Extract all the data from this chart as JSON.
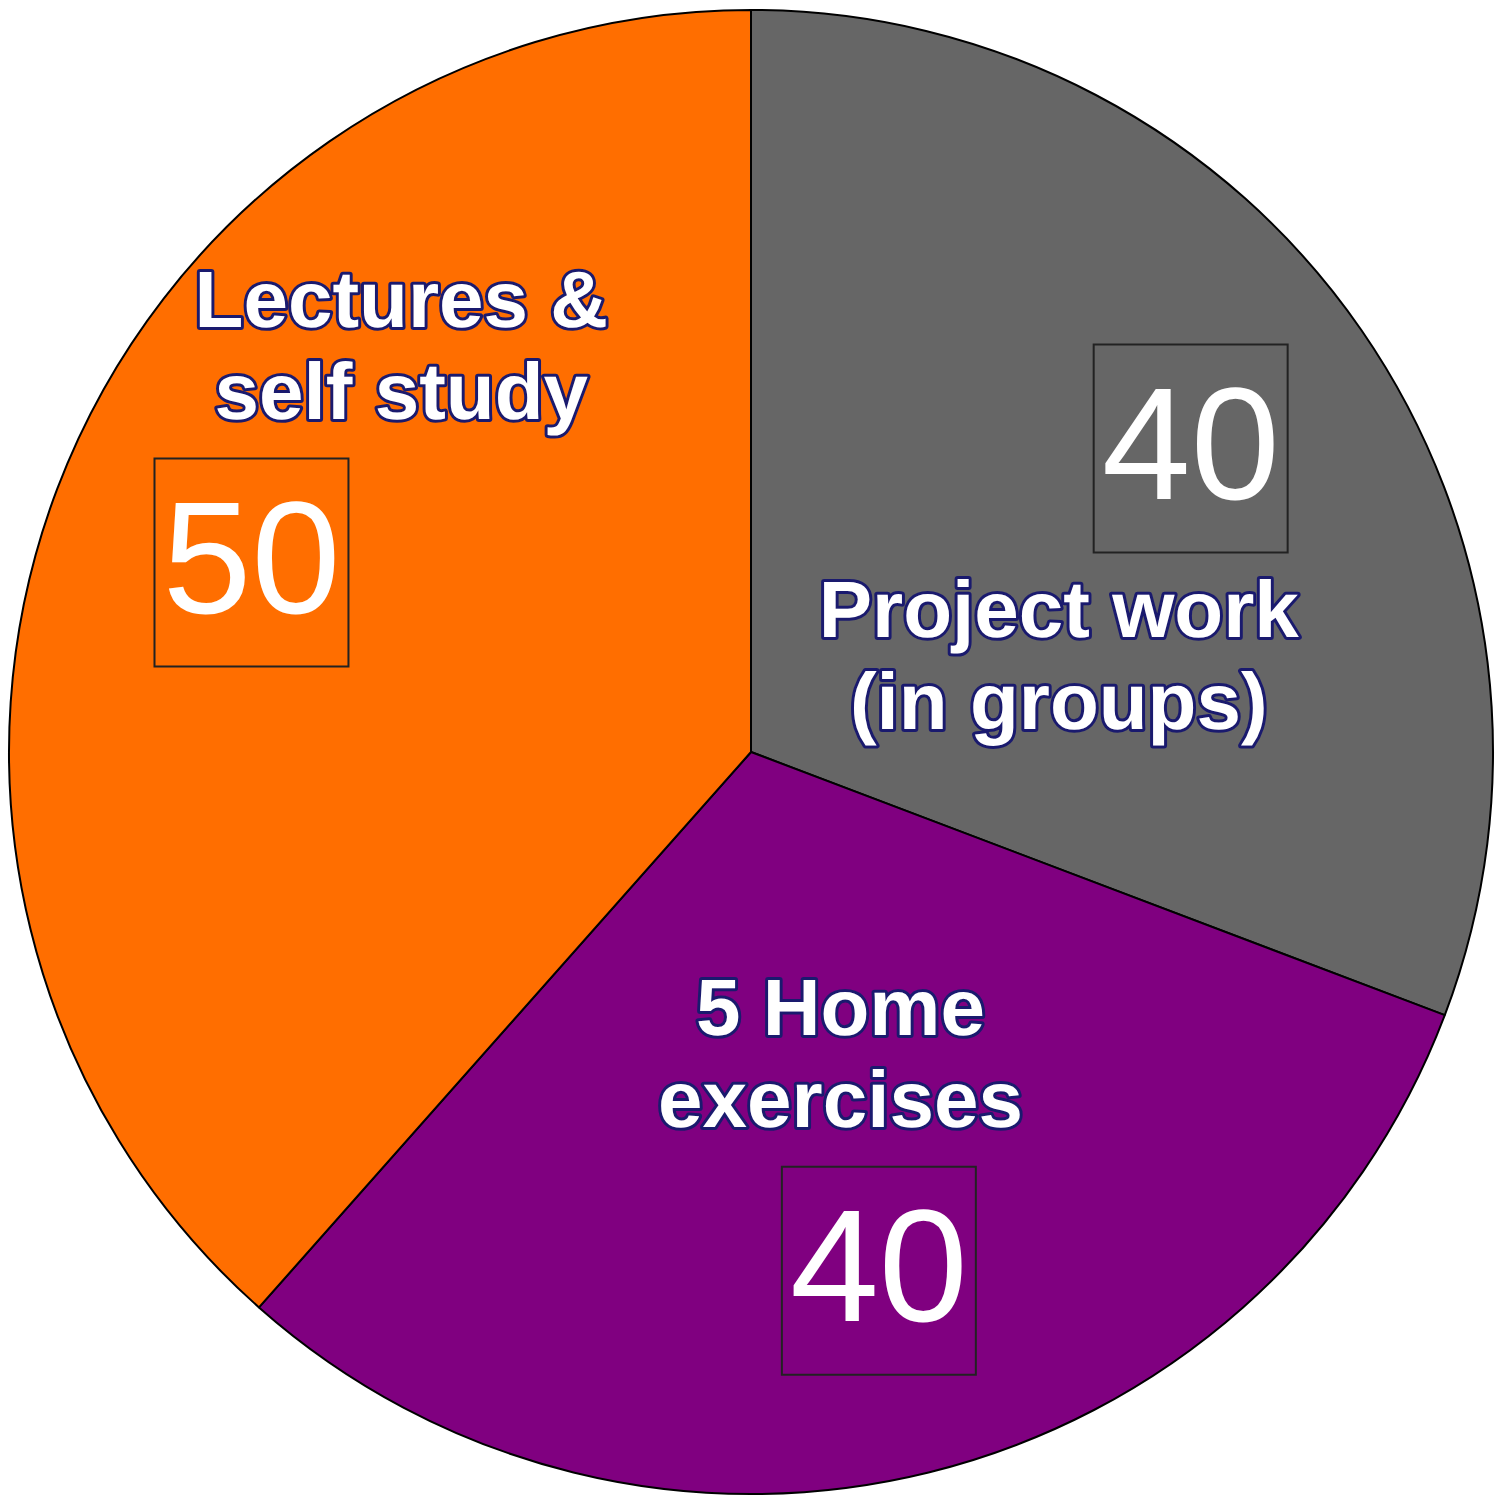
{
  "chart_data": {
    "type": "pie",
    "categories": [
      "Project work (in groups)",
      "5 Home exercises",
      "Lectures & self study"
    ],
    "values": [
      40,
      40,
      50
    ],
    "colors": [
      "#666666",
      "#800080",
      "#ff6e00"
    ],
    "data_labels": true,
    "legend": false
  }
}
